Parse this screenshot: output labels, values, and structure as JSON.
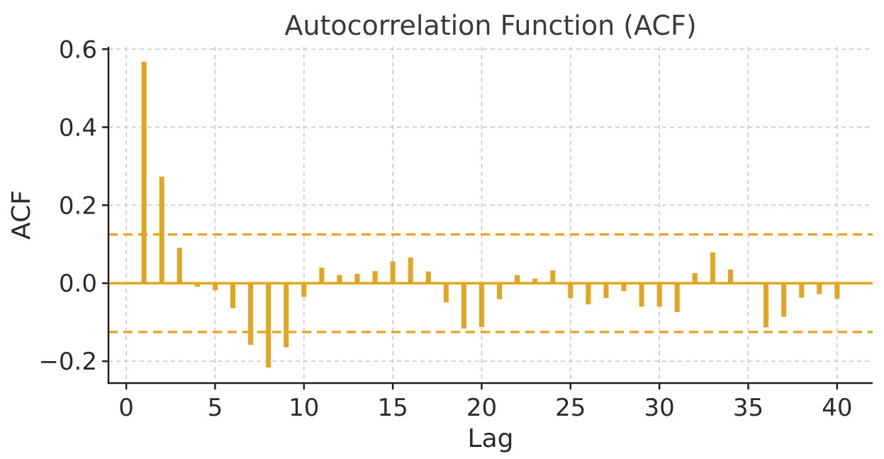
{
  "chart_data": {
    "type": "bar",
    "title": "Autocorrelation Function (ACF)",
    "xlabel": "Lag",
    "ylabel": "ACF",
    "x": [
      1,
      2,
      3,
      4,
      5,
      6,
      7,
      8,
      9,
      10,
      11,
      12,
      13,
      14,
      15,
      16,
      17,
      18,
      19,
      20,
      21,
      22,
      23,
      24,
      25,
      26,
      27,
      28,
      29,
      30,
      31,
      32,
      33,
      34,
      35,
      36,
      37,
      38,
      39,
      40
    ],
    "values": [
      0.568,
      0.273,
      0.091,
      -0.009,
      -0.018,
      -0.064,
      -0.158,
      -0.216,
      -0.164,
      -0.035,
      0.04,
      0.021,
      0.024,
      0.031,
      0.056,
      0.066,
      0.03,
      -0.049,
      -0.116,
      -0.112,
      -0.041,
      0.021,
      0.012,
      0.033,
      -0.038,
      -0.054,
      -0.038,
      -0.02,
      -0.06,
      -0.06,
      -0.074,
      0.026,
      0.079,
      0.035,
      0.0,
      -0.113,
      -0.086,
      -0.037,
      -0.028,
      -0.04
    ],
    "confidence_interval": 0.125,
    "zero_line": 0,
    "xlim": [
      -1,
      42
    ],
    "ylim": [
      -0.256,
      0.606
    ],
    "xticks": [
      0,
      5,
      10,
      15,
      20,
      25,
      30,
      35,
      40
    ],
    "xtick_labels": [
      "0",
      "5",
      "10",
      "15",
      "20",
      "25",
      "30",
      "35",
      "40"
    ],
    "yticks": [
      -0.2,
      0.0,
      0.2,
      0.4,
      0.6
    ],
    "ytick_labels": [
      "−0.2",
      "0.0",
      "0.2",
      "0.4",
      "0.6"
    ],
    "grid": true,
    "grid_style": "dashed",
    "legend": null,
    "colors": {
      "bar": "#E3A41F",
      "zero_line": "#E3A41F",
      "ci_line": "#E3A41F",
      "grid": "#C9C9C9",
      "spine": "#1f1f1f",
      "text": "#2b2b2b",
      "title": "#3a3a3a",
      "background": "#ffffff"
    }
  }
}
